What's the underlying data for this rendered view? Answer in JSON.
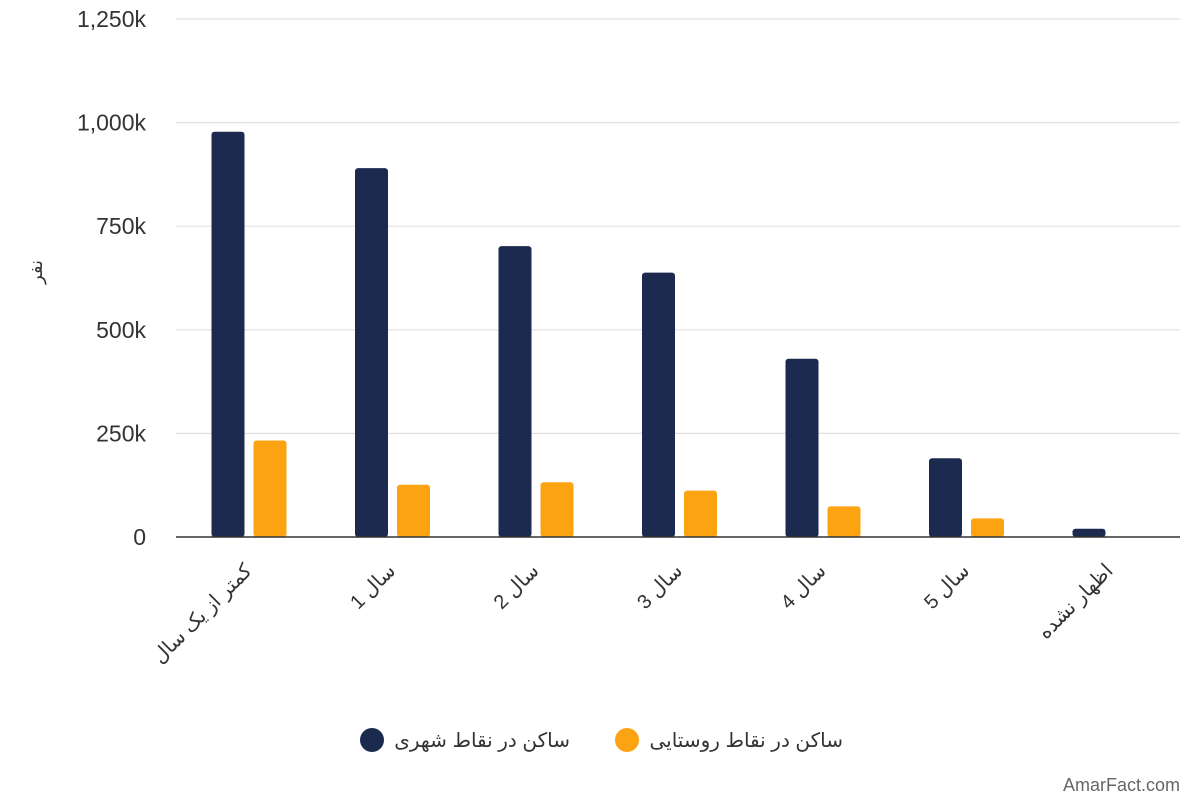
{
  "chart_data": {
    "type": "bar",
    "title": "",
    "xlabel": "",
    "ylabel": "نفر",
    "ylim": [
      0,
      1250000
    ],
    "yticks": [
      0,
      250000,
      500000,
      750000,
      1000000,
      1250000
    ],
    "ytick_labels": [
      "0",
      "250k",
      "500k",
      "750k",
      "1,000k",
      "1,250k"
    ],
    "categories": [
      "کمتر از یک سال",
      "سال 1",
      "سال 2",
      "سال 3",
      "سال 4",
      "سال 5",
      "اظهار نشده"
    ],
    "series": [
      {
        "name": "ساکن در نقاط شهری",
        "color": "#1b2a4e",
        "values": [
          978000,
          890000,
          702000,
          638000,
          430000,
          190000,
          20000
        ]
      },
      {
        "name": "ساکن در نقاط روستایی",
        "color": "#fca311",
        "values": [
          233000,
          126000,
          132000,
          112000,
          74000,
          45000,
          0
        ]
      }
    ],
    "grid": true,
    "legend_position": "bottom-center"
  },
  "watermark": "AmarFact.com"
}
